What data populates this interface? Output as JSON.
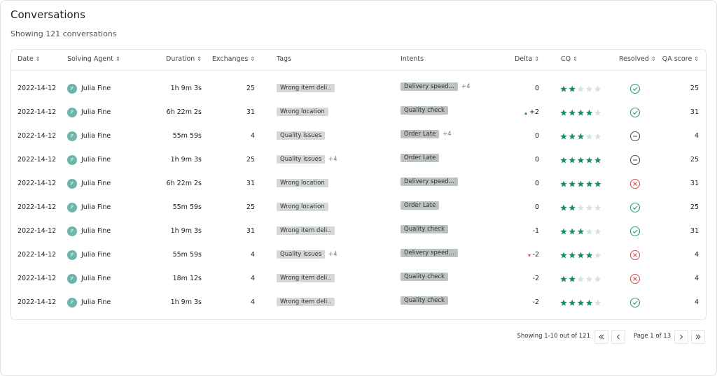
{
  "header": {
    "title": "Conversations",
    "subtitle": "Showing 121 conversations"
  },
  "table": {
    "columns": [
      {
        "label": "Date",
        "sortable": true
      },
      {
        "label": "Solving Agent",
        "sortable": true
      },
      {
        "label": "Duration",
        "sortable": true
      },
      {
        "label": "Exchanges",
        "sortable": true
      },
      {
        "label": "Tags",
        "sortable": false
      },
      {
        "label": "Intents",
        "sortable": false
      },
      {
        "label": "Delta",
        "sortable": true
      },
      {
        "label": "CQ",
        "sortable": true
      },
      {
        "label": "Resolved",
        "sortable": true
      },
      {
        "label": "QA score",
        "sortable": true
      }
    ],
    "rows": [
      {
        "date": "2022-14-12",
        "initials": "JF",
        "agent": "Julia Fine",
        "duration": "1h 9m 3s",
        "exchanges": 25,
        "tag": "Wrong item deli..",
        "intent": "Delivery speed...",
        "intent_more": "+4",
        "delta": "0",
        "cq": 2,
        "resolved": "resolved",
        "qa": 25
      },
      {
        "date": "2022-14-12",
        "initials": "JF",
        "agent": "Julia Fine",
        "duration": "6h 22m 2s",
        "exchanges": 31,
        "tag": "Wrong location",
        "intent": "Quality check",
        "delta": "+2",
        "trend": "up",
        "cq": 4,
        "resolved": "resolved",
        "qa": 31
      },
      {
        "date": "2022-14-12",
        "initials": "JF",
        "agent": "Julia Fine",
        "duration": "55m 59s",
        "exchanges": 4,
        "tag": "Quality issues",
        "intent": "Order Late",
        "intent_more": "+4",
        "delta": "0",
        "cq": 3,
        "resolved": "pending",
        "qa": 4
      },
      {
        "date": "2022-14-12",
        "initials": "JF",
        "agent": "Julia Fine",
        "duration": "1h 9m 3s",
        "exchanges": 25,
        "tag": "Quality issues",
        "tag_more": "+4",
        "intent": "Order Late",
        "delta": "0",
        "cq": 5,
        "resolved": "pending",
        "qa": 25
      },
      {
        "date": "2022-14-12",
        "initials": "JF",
        "agent": "Julia Fine",
        "duration": "6h 22m 2s",
        "exchanges": 31,
        "tag": "Wrong location",
        "intent": "Delivery speed...",
        "delta": "0",
        "cq": 5,
        "resolved": "unresolved",
        "qa": 31
      },
      {
        "date": "2022-14-12",
        "initials": "JF",
        "agent": "Julia Fine",
        "duration": "55m 59s",
        "exchanges": 25,
        "tag": "Wrong location",
        "intent": "Order Late",
        "delta": "0",
        "cq": 2,
        "resolved": "resolved",
        "qa": 25
      },
      {
        "date": "2022-14-12",
        "initials": "JF",
        "agent": "Julia Fine",
        "duration": "1h 9m 3s",
        "exchanges": 31,
        "tag": "Wrong item deli..",
        "intent": "Quality check",
        "delta": "-1",
        "cq": 3,
        "resolved": "resolved",
        "qa": 31
      },
      {
        "date": "2022-14-12",
        "initials": "JF",
        "agent": "Julia Fine",
        "duration": "55m 59s",
        "exchanges": 4,
        "tag": "Quality issues",
        "tag_more": "+4",
        "intent": "Delivery speed...",
        "delta": "-2",
        "trend": "down",
        "cq": 4,
        "resolved": "unresolved",
        "qa": 4
      },
      {
        "date": "2022-14-12",
        "initials": "JF",
        "agent": "Julia Fine",
        "duration": "18m 12s",
        "exchanges": 4,
        "tag": "Wrong item deli..",
        "intent": "Quality check",
        "delta": "-2",
        "cq": 2,
        "resolved": "unresolved",
        "qa": 4
      },
      {
        "date": "2022-14-12",
        "initials": "JF",
        "agent": "Julia Fine",
        "duration": "1h 9m 3s",
        "exchanges": 4,
        "tag": "Wrong item deli..",
        "intent": "Quality check",
        "delta": "-2",
        "cq": 4,
        "resolved": "resolved",
        "qa": 4
      }
    ]
  },
  "pagination": {
    "summary": "Showing 1-10 out of 121",
    "page": "Page 1 of 13"
  }
}
